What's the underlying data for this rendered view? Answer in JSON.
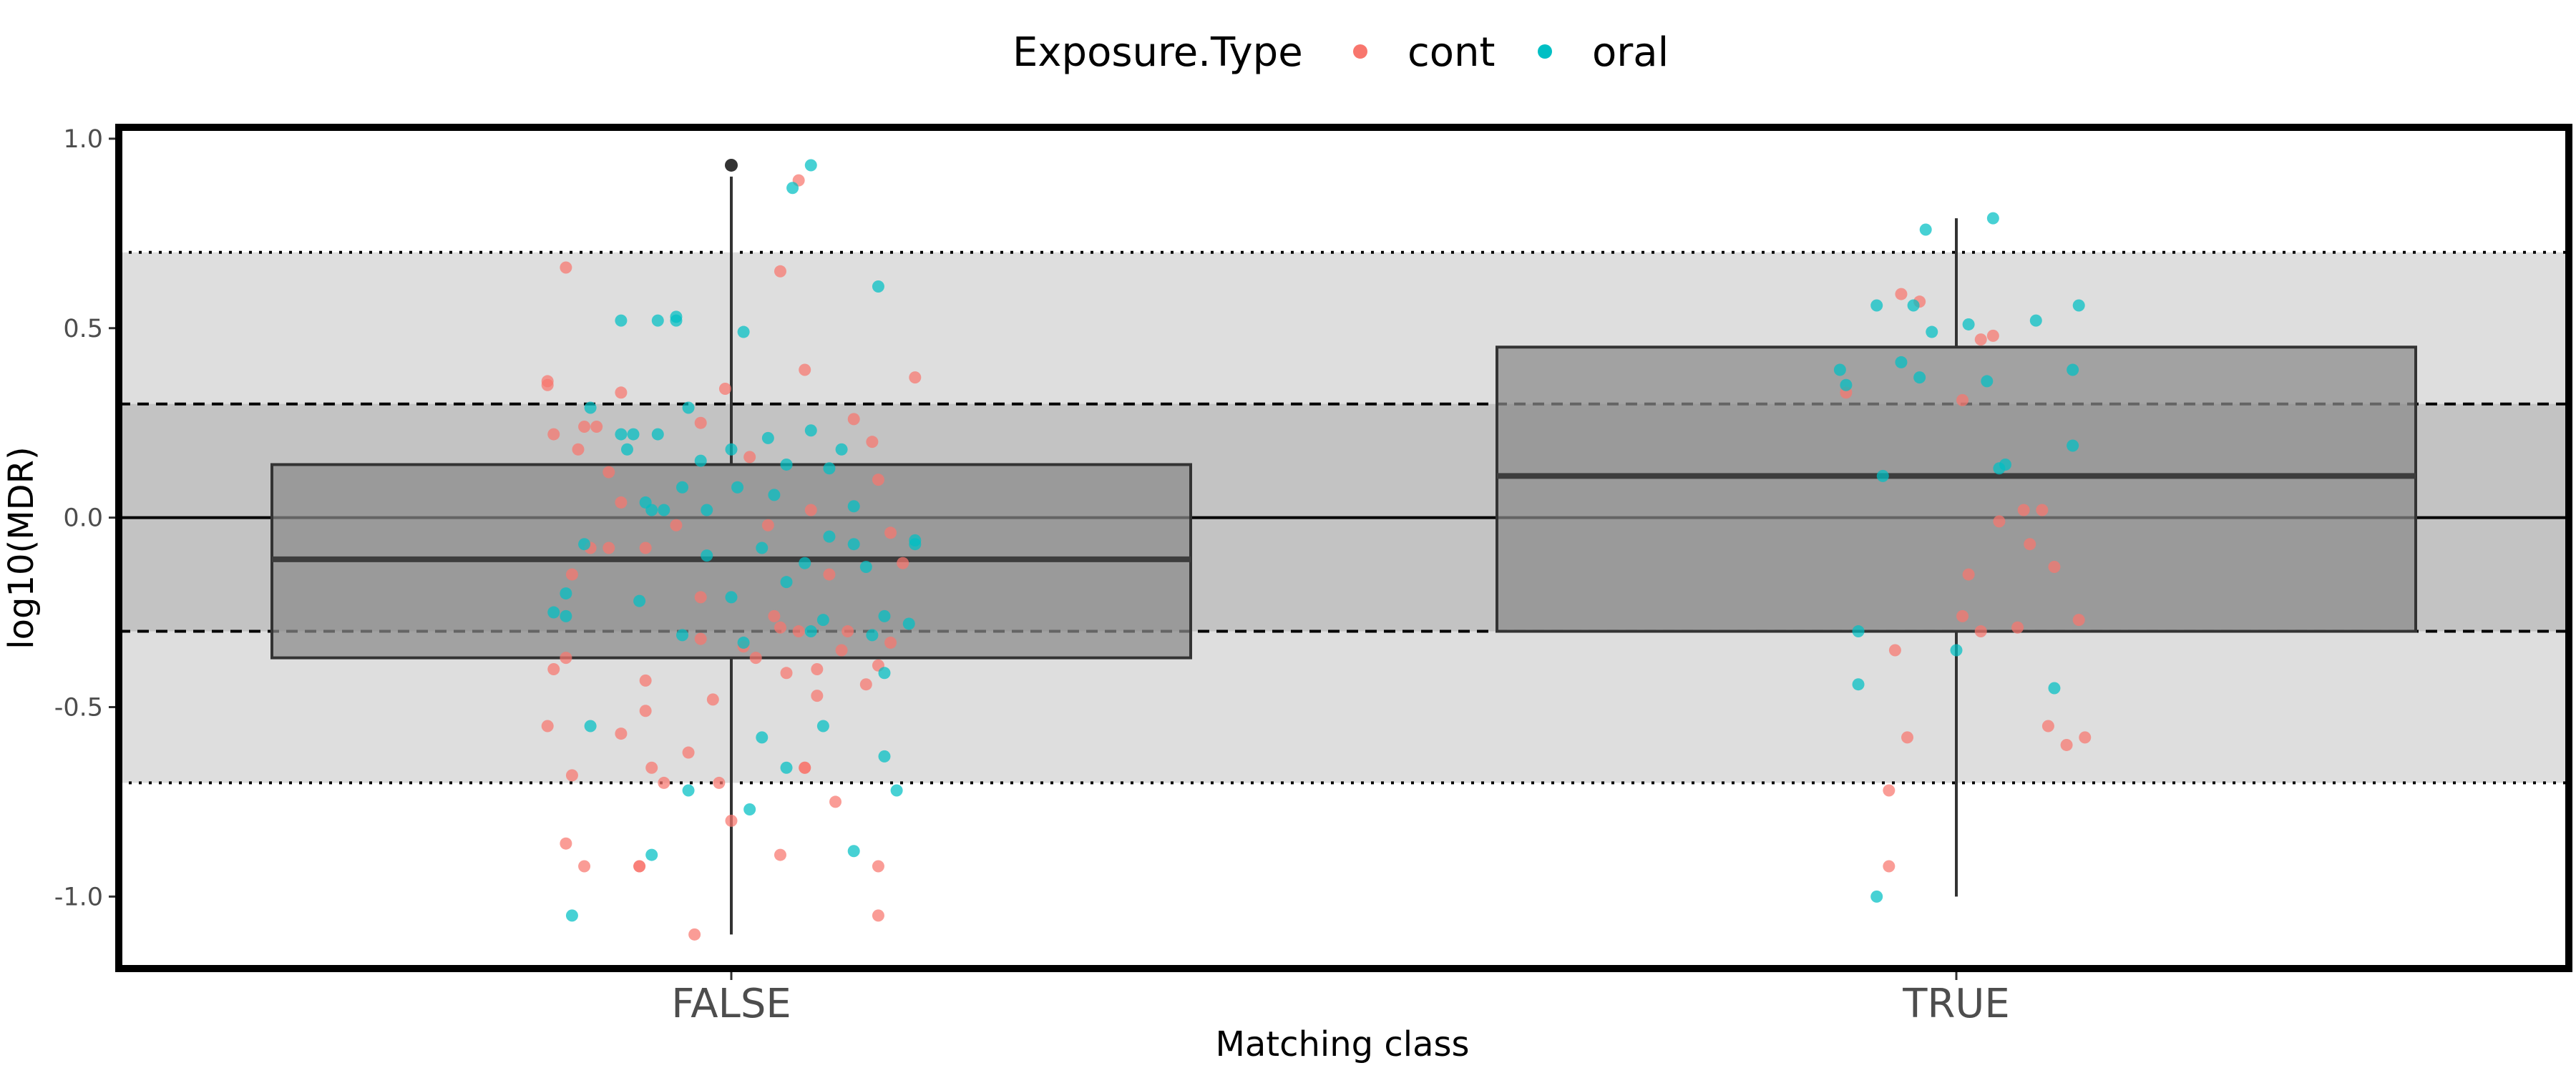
{
  "chart_data": {
    "type": "box",
    "xlabel": "Matching class",
    "ylabel": "log10(MDR)",
    "categories": [
      "FALSE",
      "TRUE"
    ],
    "ylim": [
      -1.19,
      1.03
    ],
    "y_ticks": [
      {
        "value": 1.0,
        "label": "1.0"
      },
      {
        "value": 0.5,
        "label": "0.5"
      },
      {
        "value": 0.0,
        "label": "0.0"
      },
      {
        "value": -0.5,
        "label": "-0.5"
      },
      {
        "value": -1.0,
        "label": "-1.0"
      }
    ],
    "grid": false,
    "legend": {
      "title": "Exposure.Type",
      "position": "top",
      "entries": [
        {
          "name": "cont",
          "color": "#F8766D"
        },
        {
          "name": "oral",
          "color": "#00BFC4"
        }
      ]
    },
    "reference_bands": [
      {
        "from": -0.7,
        "to": 0.7,
        "color": "#dedede"
      },
      {
        "from": -0.3,
        "to": 0.3,
        "color": "#c3c3c3"
      }
    ],
    "reference_lines": [
      {
        "y": 0.0,
        "style": "solid"
      },
      {
        "y": 0.3,
        "style": "dashed"
      },
      {
        "y": -0.3,
        "style": "dashed"
      },
      {
        "y": 0.7,
        "style": "dotted"
      },
      {
        "y": -0.7,
        "style": "dotted"
      }
    ],
    "boxes": [
      {
        "category": "FALSE",
        "whisker_low": -1.1,
        "q1": -0.37,
        "median": -0.11,
        "q3": 0.14,
        "whisker_high": 0.9,
        "outliers": [
          0.93
        ]
      },
      {
        "category": "TRUE",
        "whisker_low": -1.0,
        "q1": -0.3,
        "median": 0.11,
        "q3": 0.45,
        "whisker_high": 0.79,
        "outliers": []
      }
    ],
    "series": [
      {
        "name": "cont",
        "points": [
          [
            -0.3,
            0.35
          ],
          [
            -0.3,
            0.36
          ],
          [
            -0.27,
            0.66
          ],
          [
            -0.29,
            0.22
          ],
          [
            -0.25,
            0.18
          ],
          [
            -0.22,
            0.24
          ],
          [
            -0.24,
            0.24
          ],
          [
            -0.18,
            0.33
          ],
          [
            -0.2,
            0.12
          ],
          [
            -0.18,
            0.04
          ],
          [
            -0.14,
            -0.08
          ],
          [
            -0.09,
            -0.02
          ],
          [
            -0.05,
            0.25
          ],
          [
            -0.01,
            0.34
          ],
          [
            0.03,
            0.16
          ],
          [
            0.06,
            -0.02
          ],
          [
            0.12,
            0.39
          ],
          [
            0.13,
            0.02
          ],
          [
            0.2,
            0.26
          ],
          [
            0.23,
            0.2
          ],
          [
            0.24,
            0.1
          ],
          [
            0.26,
            -0.04
          ],
          [
            0.3,
            0.37
          ],
          [
            -0.26,
            -0.15
          ],
          [
            -0.23,
            -0.08
          ],
          [
            -0.2,
            -0.08
          ],
          [
            -0.29,
            -0.4
          ],
          [
            -0.27,
            -0.37
          ],
          [
            -0.3,
            -0.55
          ],
          [
            -0.26,
            -0.68
          ],
          [
            -0.18,
            -0.57
          ],
          [
            -0.14,
            -0.43
          ],
          [
            -0.14,
            -0.51
          ],
          [
            -0.13,
            -0.66
          ],
          [
            -0.11,
            -0.7
          ],
          [
            -0.07,
            -0.62
          ],
          [
            -0.05,
            -0.32
          ],
          [
            -0.05,
            -0.21
          ],
          [
            -0.03,
            -0.48
          ],
          [
            -0.02,
            -0.7
          ],
          [
            0.02,
            -0.34
          ],
          [
            0.04,
            -0.37
          ],
          [
            0.07,
            -0.26
          ],
          [
            0.08,
            -0.29
          ],
          [
            0.09,
            -0.41
          ],
          [
            0.11,
            -0.3
          ],
          [
            0.12,
            -0.66
          ],
          [
            0.14,
            -0.4
          ],
          [
            0.14,
            -0.47
          ],
          [
            0.18,
            -0.35
          ],
          [
            0.19,
            -0.3
          ],
          [
            0.16,
            -0.15
          ],
          [
            0.22,
            -0.44
          ],
          [
            0.24,
            -0.39
          ],
          [
            0.26,
            -0.33
          ],
          [
            0.28,
            -0.12
          ],
          [
            -0.27,
            -0.86
          ],
          [
            -0.24,
            -0.92
          ],
          [
            -0.15,
            -0.92
          ],
          [
            -0.15,
            -0.92
          ],
          [
            -0.06,
            -1.1
          ],
          [
            0.0,
            -0.8
          ],
          [
            0.08,
            -0.89
          ],
          [
            0.12,
            -0.66
          ],
          [
            0.17,
            -0.75
          ],
          [
            0.24,
            -0.92
          ],
          [
            0.24,
            -1.05
          ],
          [
            0.08,
            0.65
          ],
          [
            0.11,
            0.89
          ]
        ]
      },
      {
        "name": "oral",
        "points": [
          [
            -0.18,
            0.52
          ],
          [
            -0.12,
            0.52
          ],
          [
            -0.09,
            0.52
          ],
          [
            -0.09,
            0.53
          ],
          [
            -0.07,
            0.29
          ],
          [
            -0.23,
            0.29
          ],
          [
            -0.18,
            0.22
          ],
          [
            -0.17,
            0.18
          ],
          [
            -0.16,
            0.22
          ],
          [
            -0.14,
            0.04
          ],
          [
            -0.13,
            0.02
          ],
          [
            -0.12,
            0.22
          ],
          [
            -0.11,
            0.02
          ],
          [
            -0.08,
            0.08
          ],
          [
            -0.05,
            0.15
          ],
          [
            -0.04,
            0.02
          ],
          [
            0.0,
            0.18
          ],
          [
            0.01,
            0.08
          ],
          [
            0.06,
            0.21
          ],
          [
            0.07,
            0.06
          ],
          [
            0.09,
            0.14
          ],
          [
            0.13,
            0.23
          ],
          [
            0.16,
            0.13
          ],
          [
            0.18,
            0.18
          ],
          [
            0.2,
            0.03
          ],
          [
            0.24,
            0.61
          ],
          [
            0.3,
            -0.06
          ],
          [
            0.3,
            -0.07
          ],
          [
            0.25,
            -0.26
          ],
          [
            -0.29,
            -0.25
          ],
          [
            -0.27,
            -0.26
          ],
          [
            -0.27,
            -0.2
          ],
          [
            -0.24,
            -0.07
          ],
          [
            -0.15,
            -0.22
          ],
          [
            -0.08,
            -0.31
          ],
          [
            -0.04,
            -0.1
          ],
          [
            0.0,
            -0.21
          ],
          [
            0.02,
            -0.33
          ],
          [
            0.05,
            -0.08
          ],
          [
            0.09,
            -0.17
          ],
          [
            0.12,
            -0.12
          ],
          [
            0.13,
            -0.3
          ],
          [
            0.15,
            -0.27
          ],
          [
            0.16,
            -0.05
          ],
          [
            0.2,
            -0.07
          ],
          [
            0.22,
            -0.13
          ],
          [
            0.23,
            -0.31
          ],
          [
            0.25,
            -0.41
          ],
          [
            0.25,
            -0.63
          ],
          [
            0.29,
            -0.28
          ],
          [
            -0.23,
            -0.55
          ],
          [
            -0.07,
            -0.72
          ],
          [
            0.05,
            -0.58
          ],
          [
            0.03,
            -0.77
          ],
          [
            0.09,
            -0.66
          ],
          [
            0.15,
            -0.55
          ],
          [
            0.2,
            -0.88
          ],
          [
            0.27,
            -0.72
          ],
          [
            -0.26,
            -1.05
          ],
          [
            -0.13,
            -0.89
          ],
          [
            0.02,
            0.49
          ],
          [
            0.1,
            0.87
          ],
          [
            0.13,
            0.93
          ]
        ]
      },
      {
        "name": "cont",
        "category": "TRUE",
        "points": [
          [
            -0.18,
            0.33
          ],
          [
            -0.09,
            0.59
          ],
          [
            -0.06,
            0.57
          ],
          [
            0.01,
            0.31
          ],
          [
            0.02,
            -0.15
          ],
          [
            0.04,
            0.47
          ],
          [
            0.06,
            0.48
          ],
          [
            0.07,
            -0.01
          ],
          [
            0.11,
            0.02
          ],
          [
            0.12,
            -0.07
          ],
          [
            0.14,
            0.02
          ],
          [
            0.16,
            -0.13
          ],
          [
            -0.1,
            -0.35
          ],
          [
            -0.08,
            -0.58
          ],
          [
            0.01,
            -0.26
          ],
          [
            0.04,
            -0.3
          ],
          [
            0.1,
            -0.29
          ],
          [
            0.15,
            -0.55
          ],
          [
            0.18,
            -0.6
          ],
          [
            0.2,
            -0.27
          ],
          [
            0.21,
            -0.58
          ],
          [
            -0.11,
            -0.72
          ],
          [
            -0.11,
            -0.92
          ]
        ]
      },
      {
        "name": "oral",
        "category": "TRUE",
        "points": [
          [
            -0.19,
            0.39
          ],
          [
            -0.18,
            0.35
          ],
          [
            -0.12,
            0.11
          ],
          [
            -0.13,
            0.56
          ],
          [
            -0.09,
            0.41
          ],
          [
            -0.06,
            0.37
          ],
          [
            -0.04,
            0.49
          ],
          [
            -0.07,
            0.56
          ],
          [
            0.02,
            0.51
          ],
          [
            0.05,
            0.36
          ],
          [
            0.07,
            0.13
          ],
          [
            0.08,
            0.14
          ],
          [
            0.06,
            0.79
          ],
          [
            -0.05,
            0.76
          ],
          [
            0.13,
            0.52
          ],
          [
            0.19,
            0.39
          ],
          [
            0.19,
            0.19
          ],
          [
            0.2,
            0.56
          ],
          [
            -0.16,
            -0.3
          ],
          [
            -0.16,
            -0.44
          ],
          [
            0.0,
            -0.35
          ],
          [
            0.16,
            -0.45
          ],
          [
            -0.13,
            -1.0
          ]
        ]
      }
    ]
  }
}
